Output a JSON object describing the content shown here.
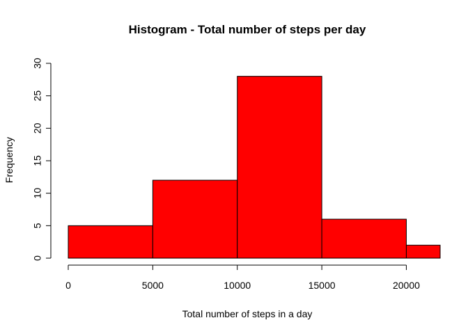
{
  "chart_data": {
    "type": "bar",
    "title": "Histogram - Total number of steps per day",
    "xlabel": "Total number of steps in a day",
    "ylabel": "Frequency",
    "bins": [
      {
        "from": 0,
        "to": 5000,
        "count": 5
      },
      {
        "from": 5000,
        "to": 10000,
        "count": 12
      },
      {
        "from": 10000,
        "to": 15000,
        "count": 28
      },
      {
        "from": 15000,
        "to": 20000,
        "count": 6
      },
      {
        "from": 20000,
        "to": 25000,
        "count": 2
      }
    ],
    "bar_color": "#ff0000",
    "bar_border_color": "#000000",
    "xlim": [
      0,
      22000
    ],
    "ylim": [
      0,
      30
    ],
    "x_ticks": [
      0,
      5000,
      10000,
      15000,
      20000
    ],
    "y_ticks": [
      0,
      5,
      10,
      15,
      20,
      25,
      30
    ],
    "x_tick_labels": [
      "0",
      "5000",
      "10000",
      "15000",
      "20000"
    ],
    "y_tick_labels": [
      "0",
      "5",
      "10",
      "15",
      "20",
      "25",
      "30"
    ],
    "grid": false,
    "legend": "none"
  }
}
